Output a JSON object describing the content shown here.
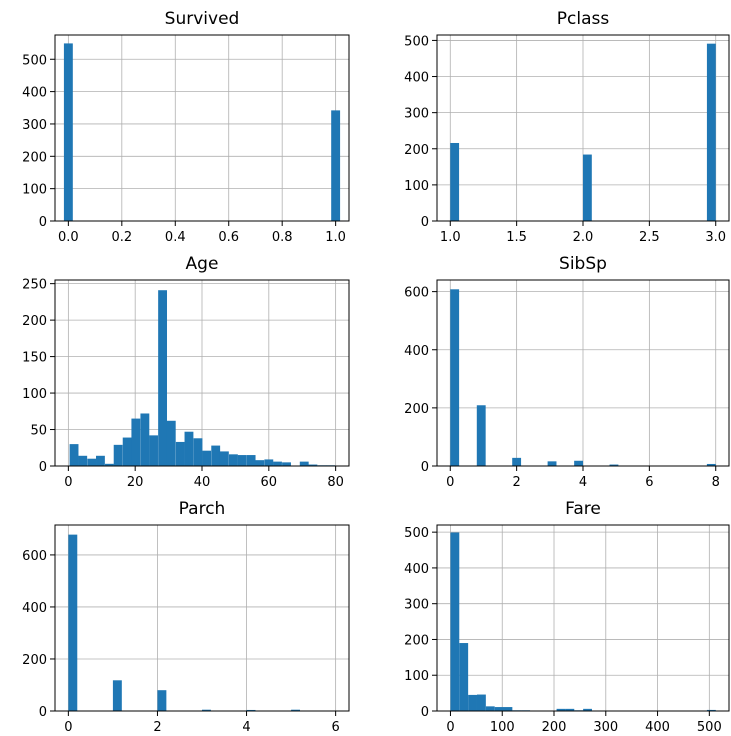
{
  "chart_data": [
    {
      "type": "bar",
      "title": "Survived",
      "xlim": [
        -0.05,
        1.05
      ],
      "ylim": [
        0,
        575
      ],
      "xticks": [
        0.0,
        0.2,
        0.4,
        0.6,
        0.8,
        1.0
      ],
      "xtick_labels": [
        "0.0",
        "0.2",
        "0.4",
        "0.6",
        "0.8",
        "1.0"
      ],
      "yticks": [
        0,
        100,
        200,
        300,
        400,
        500
      ],
      "ytick_labels": [
        "0",
        "100",
        "200",
        "300",
        "400",
        "500"
      ],
      "bin_width": 0.0333,
      "bin_centers": [
        0.0,
        1.0
      ],
      "values": [
        549,
        342
      ],
      "color": "#1f77b4"
    },
    {
      "type": "bar",
      "title": "Pclass",
      "xlim": [
        0.9,
        3.1
      ],
      "ylim": [
        0,
        515
      ],
      "xticks": [
        1.0,
        1.5,
        2.0,
        2.5,
        3.0
      ],
      "xtick_labels": [
        "1.0",
        "1.5",
        "2.0",
        "2.5",
        "3.0"
      ],
      "yticks": [
        0,
        100,
        200,
        300,
        400,
        500
      ],
      "ytick_labels": [
        "0",
        "100",
        "200",
        "300",
        "400",
        "500"
      ],
      "bin_width": 0.0667,
      "bin_centers": [
        1.033,
        2.033,
        2.967
      ],
      "values": [
        216,
        184,
        491
      ],
      "color": "#1f77b4"
    },
    {
      "type": "bar",
      "title": "Age",
      "xlim": [
        -4,
        84
      ],
      "ylim": [
        0,
        255
      ],
      "xticks": [
        0,
        20,
        40,
        60,
        80
      ],
      "xtick_labels": [
        "0",
        "20",
        "40",
        "60",
        "80"
      ],
      "yticks": [
        0,
        50,
        100,
        150,
        200,
        250
      ],
      "ytick_labels": [
        "0",
        "50",
        "100",
        "150",
        "200",
        "250"
      ],
      "bin_width": 2.65,
      "bin_centers": [
        1.7,
        4.3,
        7.0,
        9.6,
        12.3,
        14.9,
        17.6,
        20.2,
        22.9,
        25.5,
        28.2,
        30.8,
        33.5,
        36.1,
        38.8,
        41.4,
        44.1,
        46.7,
        49.4,
        52.0,
        54.7,
        57.3,
        60.0,
        62.6,
        65.3,
        67.9,
        70.6,
        73.2,
        75.9,
        78.5
      ],
      "values": [
        30,
        14,
        10,
        14,
        3,
        29,
        39,
        65,
        72,
        42,
        241,
        62,
        33,
        47,
        38,
        21,
        28,
        20,
        16,
        15,
        15,
        8,
        9,
        6,
        5,
        0,
        6,
        2,
        1,
        1
      ],
      "color": "#1f77b4"
    },
    {
      "type": "bar",
      "title": "SibSp",
      "xlim": [
        -0.4,
        8.4
      ],
      "ylim": [
        0,
        640
      ],
      "xticks": [
        0,
        2,
        4,
        6,
        8
      ],
      "xtick_labels": [
        "0",
        "2",
        "4",
        "6",
        "8"
      ],
      "yticks": [
        0,
        200,
        400,
        600
      ],
      "ytick_labels": [
        "0",
        "200",
        "400",
        "600"
      ],
      "bin_width": 0.267,
      "bin_centers": [
        0.133,
        0.933,
        2.0,
        3.067,
        3.867,
        4.933,
        7.867
      ],
      "values": [
        608,
        209,
        28,
        16,
        18,
        5,
        7
      ],
      "color": "#1f77b4"
    },
    {
      "type": "bar",
      "title": "Parch",
      "xlim": [
        -0.3,
        6.3
      ],
      "ylim": [
        0,
        715
      ],
      "xticks": [
        0,
        2,
        4,
        6
      ],
      "xtick_labels": [
        "0",
        "2",
        "4",
        "6"
      ],
      "yticks": [
        0,
        200,
        400,
        600
      ],
      "ytick_labels": [
        "0",
        "200",
        "400",
        "600"
      ],
      "bin_width": 0.2,
      "bin_centers": [
        0.1,
        1.1,
        2.1,
        3.1,
        4.1,
        5.1,
        5.9
      ],
      "values": [
        678,
        118,
        80,
        5,
        4,
        5,
        1
      ],
      "color": "#1f77b4"
    },
    {
      "type": "bar",
      "title": "Fare",
      "xlim": [
        -26,
        538
      ],
      "ylim": [
        0,
        520
      ],
      "xticks": [
        0,
        100,
        200,
        300,
        400,
        500
      ],
      "xtick_labels": [
        "0",
        "100",
        "200",
        "300",
        "400",
        "500"
      ],
      "yticks": [
        0,
        100,
        200,
        300,
        400,
        500
      ],
      "ytick_labels": [
        "0",
        "100",
        "200",
        "300",
        "400",
        "500"
      ],
      "bin_width": 17.08,
      "bin_centers": [
        8.5,
        25.6,
        42.7,
        59.8,
        76.9,
        94.0,
        111.0,
        128.1,
        145.2,
        162.3,
        179.4,
        196.5,
        213.5,
        230.6,
        247.7,
        264.8,
        281.9,
        298.9,
        316.0,
        333.1,
        350.2,
        367.3,
        384.3,
        401.4,
        418.5,
        435.6,
        452.7,
        469.8,
        486.8,
        503.9
      ],
      "values": [
        499,
        190,
        45,
        46,
        13,
        11,
        11,
        2,
        2,
        0,
        0,
        0,
        6,
        6,
        2,
        6,
        0,
        0,
        0,
        0,
        0,
        0,
        0,
        0,
        0,
        0,
        0,
        0,
        0,
        3
      ],
      "color": "#1f77b4"
    }
  ]
}
